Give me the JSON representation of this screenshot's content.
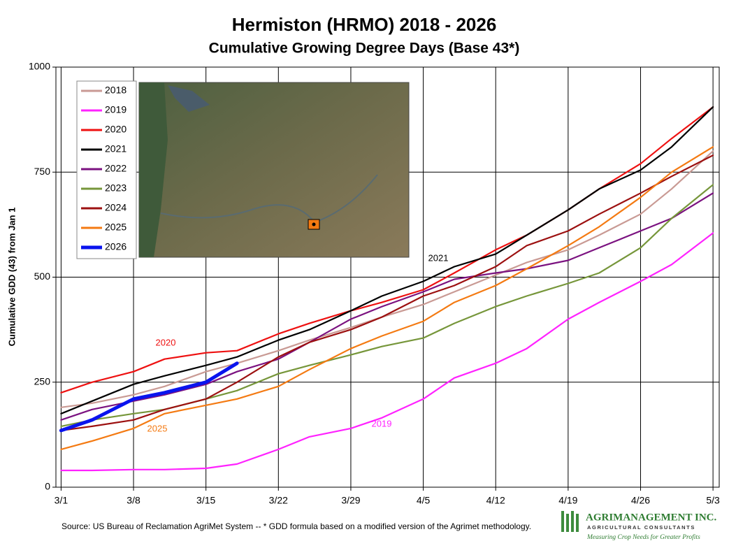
{
  "chart_data": {
    "type": "line",
    "title": "Hermiston (HRMO) 2018 - 2026",
    "subtitle": "Cumulative Growing Degree Days (Base 43*)",
    "y_label": "Cumulative GDD (43) from Jan 1",
    "x": [
      0,
      3,
      7,
      10,
      14,
      17,
      21,
      24,
      28,
      31,
      35,
      38,
      42,
      45,
      49,
      52,
      56,
      59,
      63
    ],
    "xlim": [
      -0.5,
      63.6
    ],
    "xticks": [
      {
        "value": 0,
        "label": "3/1"
      },
      {
        "value": 7,
        "label": "3/8"
      },
      {
        "value": 14,
        "label": "3/15"
      },
      {
        "value": 21,
        "label": "3/22"
      },
      {
        "value": 28,
        "label": "3/29"
      },
      {
        "value": 35,
        "label": "4/5"
      },
      {
        "value": 42,
        "label": "4/12"
      },
      {
        "value": 49,
        "label": "4/19"
      },
      {
        "value": 56,
        "label": "4/26"
      },
      {
        "value": 63,
        "label": "5/3"
      }
    ],
    "ylim": [
      0,
      1000
    ],
    "yticks": [
      0,
      250,
      500,
      750,
      1000
    ],
    "grid": true,
    "legend": "upper-left",
    "series": [
      {
        "name": "2018",
        "color": "#c99a94",
        "values": [
          190,
          200,
          220,
          240,
          275,
          295,
          325,
          350,
          380,
          405,
          435,
          465,
          505,
          535,
          565,
          600,
          650,
          710,
          800
        ]
      },
      {
        "name": "2019",
        "color": "#ff22ff",
        "values": [
          40,
          40,
          42,
          42,
          45,
          55,
          90,
          120,
          140,
          165,
          210,
          260,
          295,
          330,
          400,
          440,
          490,
          530,
          605
        ]
      },
      {
        "name": "2020",
        "color": "#ee1111",
        "values": [
          225,
          250,
          275,
          305,
          320,
          325,
          365,
          390,
          420,
          440,
          470,
          510,
          565,
          600,
          660,
          710,
          770,
          830,
          905
        ]
      },
      {
        "name": "2021",
        "color": "#000000",
        "values": [
          175,
          205,
          245,
          265,
          290,
          310,
          350,
          375,
          420,
          455,
          490,
          525,
          555,
          600,
          660,
          710,
          755,
          810,
          905
        ]
      },
      {
        "name": "2022",
        "color": "#7b1280",
        "values": [
          160,
          185,
          205,
          220,
          245,
          275,
          305,
          345,
          400,
          430,
          465,
          495,
          510,
          520,
          540,
          570,
          610,
          640,
          700
        ]
      },
      {
        "name": "2023",
        "color": "#76963a",
        "values": [
          145,
          160,
          175,
          185,
          210,
          230,
          270,
          290,
          315,
          335,
          355,
          390,
          430,
          455,
          485,
          510,
          570,
          640,
          720
        ]
      },
      {
        "name": "2024",
        "color": "#9c1010",
        "values": [
          135,
          145,
          160,
          185,
          210,
          250,
          310,
          345,
          375,
          405,
          455,
          480,
          525,
          575,
          610,
          650,
          700,
          740,
          790
        ]
      },
      {
        "name": "2025",
        "color": "#f47a12",
        "values": [
          90,
          110,
          140,
          175,
          195,
          210,
          240,
          280,
          330,
          360,
          395,
          440,
          480,
          520,
          575,
          620,
          690,
          750,
          810
        ]
      },
      {
        "name": "2026",
        "color": "#0a14ee",
        "line_width": 5,
        "values": [
          135,
          160,
          210,
          225,
          250,
          295,
          null,
          null,
          null,
          null,
          null,
          null,
          null,
          null,
          null,
          null,
          null,
          null,
          null
        ]
      }
    ],
    "annotations": [
      {
        "text": "2020",
        "color": "#ee1111"
      },
      {
        "text": "2025",
        "color": "#f47a12"
      },
      {
        "text": "2019",
        "color": "#ff22ff"
      },
      {
        "text": "2021",
        "color": "#000000"
      }
    ]
  },
  "source": "Source:  US Bureau of Reclamation AgriMet System --  * GDD formula based on a modified version of the Agrimet methodology.",
  "logo": {
    "name": "AGRIMANAGEMENT INC.",
    "subtitle": "AGRICULTURAL CONSULTANTS",
    "tagline": "Measuring Crop Needs for Greater Profits"
  }
}
